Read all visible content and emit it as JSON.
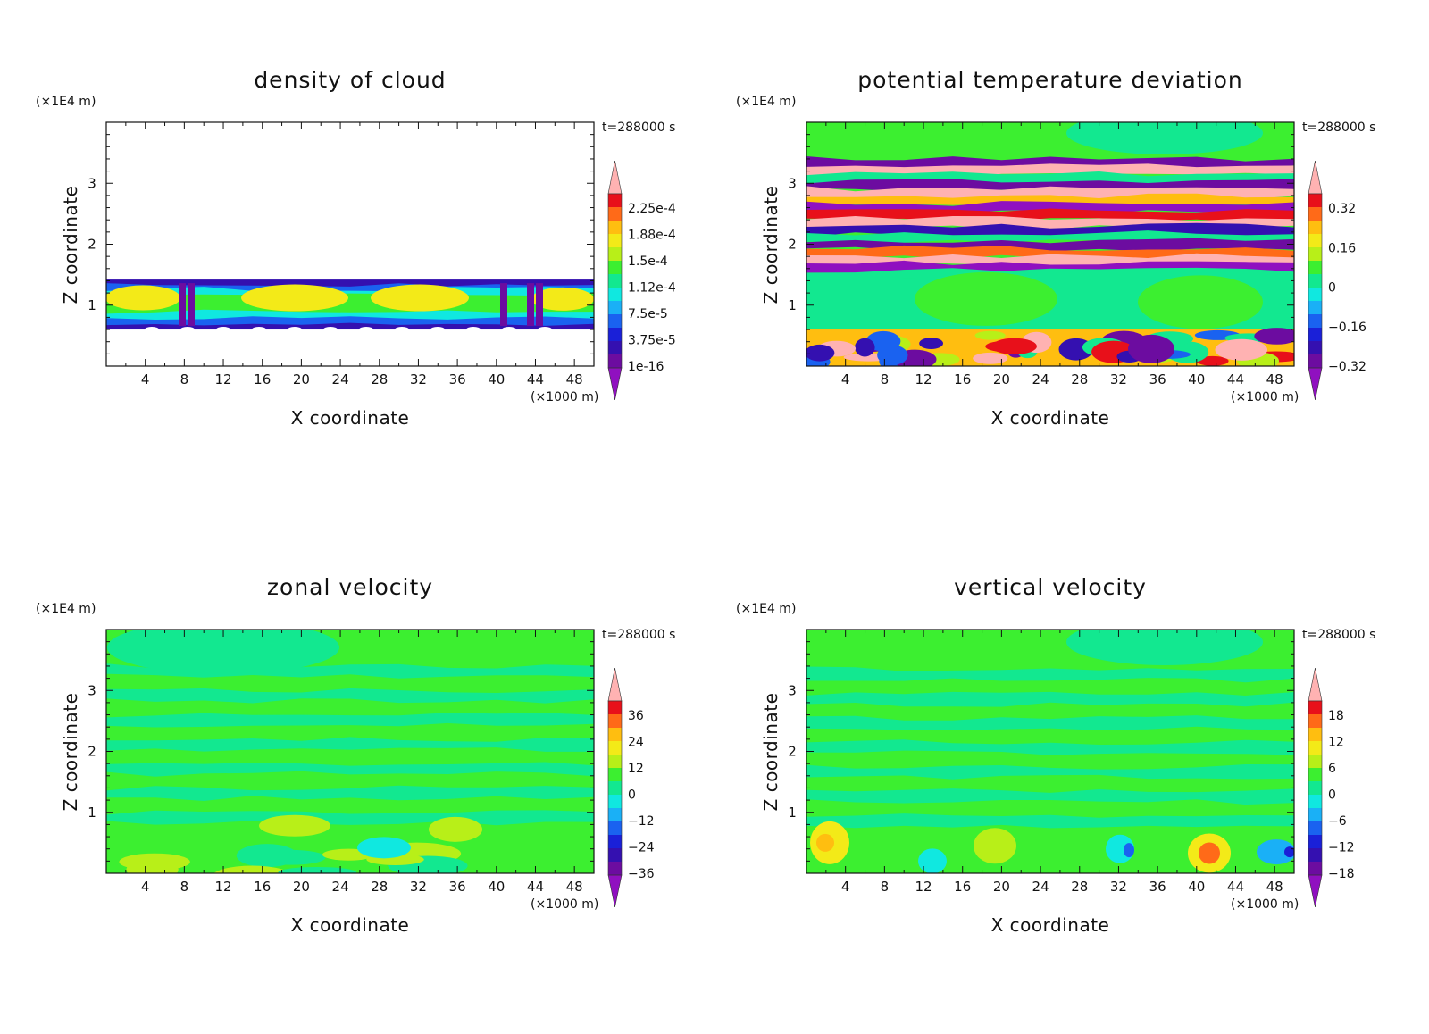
{
  "panels": [
    {
      "title": "density of cloud",
      "xlabel": "X coordinate",
      "ylabel": "Z coordinate",
      "ylabel_unit": "(×1E4 m)",
      "xlabel_unit": "(×1000 m)",
      "time_label": "t=288000 s",
      "colorbar_labels": [
        "2.25e-4",
        "1.88e-4",
        "1.5e-4",
        "1.12e-4",
        "7.5e-5",
        "3.75e-5",
        "1e-16"
      ]
    },
    {
      "title": "potential temperature deviation",
      "xlabel": "X coordinate",
      "ylabel": "Z coordinate",
      "ylabel_unit": "(×1E4 m)",
      "xlabel_unit": "(×1000 m)",
      "time_label": "t=288000 s",
      "colorbar_labels": [
        "0.32",
        "0.16",
        "0",
        "−0.16",
        "−0.32"
      ]
    },
    {
      "title": "zonal velocity",
      "xlabel": "X coordinate",
      "ylabel": "Z coordinate",
      "ylabel_unit": "(×1E4 m)",
      "xlabel_unit": "(×1000 m)",
      "time_label": "t=288000 s",
      "colorbar_labels": [
        "36",
        "24",
        "12",
        "0",
        "−12",
        "−24",
        "−36"
      ]
    },
    {
      "title": "vertical velocity",
      "xlabel": "X coordinate",
      "ylabel": "Z coordinate",
      "ylabel_unit": "(×1E4 m)",
      "xlabel_unit": "(×1000 m)",
      "time_label": "t=288000 s",
      "colorbar_labels": [
        "18",
        "12",
        "6",
        "0",
        "−6",
        "−12",
        "−18"
      ]
    }
  ],
  "chart_data": [
    {
      "type": "heatmap",
      "title": "density of cloud",
      "xlabel": "X coordinate",
      "ylabel": "Z coordinate",
      "x_ticks": [
        4,
        8,
        12,
        16,
        20,
        24,
        28,
        32,
        36,
        40,
        44,
        48
      ],
      "y_ticks": [
        1,
        2,
        3
      ],
      "xlim": [
        0,
        50
      ],
      "ylim": [
        0,
        4
      ],
      "colorbar_levels": [
        0.000225,
        0.000188,
        0.00015,
        0.000112,
        7.5e-05,
        3.75e-05,
        1e-16
      ],
      "colorbar_colors": [
        "#ffb2b2",
        "#e8101a",
        "#ff6a18",
        "#ffbe10",
        "#f3ea18",
        "#b8ef18",
        "#3cef30",
        "#12e890",
        "#10e8e0",
        "#1ab0f6",
        "#1a62f0",
        "#1a20d8",
        "#3410b0",
        "#6c0ca0",
        "#9010c0"
      ],
      "cloud_layer_z": [
        0.6,
        1.42
      ]
    },
    {
      "type": "heatmap",
      "title": "potential temperature deviation",
      "xlabel": "X coordinate",
      "ylabel": "Z coordinate",
      "x_ticks": [
        4,
        8,
        12,
        16,
        20,
        24,
        28,
        32,
        36,
        40,
        44,
        48
      ],
      "y_ticks": [
        1,
        2,
        3
      ],
      "xlim": [
        0,
        50
      ],
      "ylim": [
        0,
        4
      ],
      "colorbar_levels": [
        0.32,
        0.16,
        0,
        -0.16,
        -0.32
      ],
      "colorbar_colors": [
        "#ffb2b2",
        "#e8101a",
        "#ff6a18",
        "#ffbe10",
        "#f3ea18",
        "#b8ef18",
        "#3cef30",
        "#12e890",
        "#10e8e0",
        "#1ab0f6",
        "#1a62f0",
        "#1a20d8",
        "#3410b0",
        "#6c0ca0",
        "#9010c0"
      ]
    },
    {
      "type": "heatmap",
      "title": "zonal velocity",
      "xlabel": "X coordinate",
      "ylabel": "Z coordinate",
      "x_ticks": [
        4,
        8,
        12,
        16,
        20,
        24,
        28,
        32,
        36,
        40,
        44,
        48
      ],
      "y_ticks": [
        1,
        2,
        3
      ],
      "xlim": [
        0,
        50
      ],
      "ylim": [
        0,
        4
      ],
      "colorbar_levels": [
        36,
        24,
        12,
        0,
        -12,
        -24,
        -36
      ],
      "colorbar_colors": [
        "#ffb2b2",
        "#e8101a",
        "#ff6a18",
        "#ffbe10",
        "#f3ea18",
        "#b8ef18",
        "#3cef30",
        "#12e890",
        "#10e8e0",
        "#1ab0f6",
        "#1a62f0",
        "#1a20d8",
        "#3410b0",
        "#6c0ca0",
        "#9010c0"
      ]
    },
    {
      "type": "heatmap",
      "title": "vertical velocity",
      "xlabel": "X coordinate",
      "ylabel": "Z coordinate",
      "x_ticks": [
        4,
        8,
        12,
        16,
        20,
        24,
        28,
        32,
        36,
        40,
        44,
        48
      ],
      "y_ticks": [
        1,
        2,
        3
      ],
      "xlim": [
        0,
        50
      ],
      "ylim": [
        0,
        4
      ],
      "colorbar_levels": [
        18,
        12,
        6,
        0,
        -6,
        -12,
        -18
      ],
      "colorbar_colors": [
        "#ffb2b2",
        "#e8101a",
        "#ff6a18",
        "#ffbe10",
        "#f3ea18",
        "#b8ef18",
        "#3cef30",
        "#12e890",
        "#10e8e0",
        "#1ab0f6",
        "#1a62f0",
        "#1a20d8",
        "#3410b0",
        "#6c0ca0",
        "#9010c0"
      ]
    }
  ]
}
